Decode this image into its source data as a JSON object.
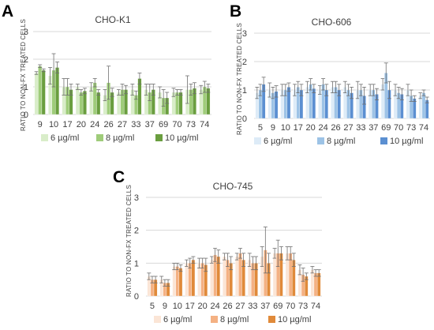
{
  "chart_data": [
    {
      "type": "bar",
      "panel": "A",
      "title": "CHO-K1",
      "ylabel": "RATIO TO NON-FX TREATED CELLS",
      "ylim": [
        0,
        3
      ],
      "yticks": [
        "0",
        "1",
        "2",
        "3"
      ],
      "grid": true,
      "legend": "bottom",
      "categories": [
        "9",
        "10",
        "17",
        "20",
        "24",
        "26",
        "27",
        "33",
        "37",
        "69",
        "70",
        "73",
        "74"
      ],
      "series": [
        {
          "name": "6 µg/ml",
          "color": "#d9edc9",
          "values": [
            1.5,
            1.4,
            1.0,
            1.0,
            1.0,
            0.7,
            0.8,
            0.9,
            0.9,
            0.8,
            0.8,
            0.9,
            0.9
          ],
          "errors": [
            0.05,
            0.3,
            0.3,
            0.1,
            0.15,
            0.2,
            0.1,
            0.2,
            0.2,
            0.2,
            0.15,
            0.5,
            0.15
          ]
        },
        {
          "name": "8 µg/ml",
          "color": "#9fcc7a",
          "values": [
            1.75,
            1.6,
            1.0,
            0.8,
            1.15,
            1.15,
            0.9,
            0.7,
            0.8,
            0.6,
            0.8,
            0.9,
            1.0
          ],
          "errors": [
            0.05,
            0.6,
            0.3,
            0.1,
            0.15,
            0.6,
            0.2,
            0.15,
            0.3,
            0.3,
            0.1,
            0.2,
            0.2
          ]
        },
        {
          "name": "10 µg/ml",
          "color": "#6a9e3f",
          "values": [
            1.6,
            1.7,
            0.9,
            0.85,
            0.8,
            0.8,
            0.9,
            1.3,
            0.9,
            0.6,
            0.8,
            0.95,
            0.95
          ],
          "errors": [
            0.05,
            0.2,
            0.2,
            0.1,
            0.1,
            0.15,
            0.15,
            0.2,
            0.2,
            0.2,
            0.1,
            0.2,
            0.15
          ]
        }
      ]
    },
    {
      "type": "bar",
      "panel": "B",
      "title": "CHO-606",
      "ylabel": "RATIO TO NON-FX TREATED CELLS",
      "ylim": [
        0,
        3
      ],
      "yticks": [
        "0",
        "1",
        "2",
        "3"
      ],
      "grid": true,
      "legend": "bottom",
      "categories": [
        "5",
        "9",
        "10",
        "17",
        "20",
        "24",
        "26",
        "27",
        "33",
        "37",
        "69",
        "70",
        "73",
        "74"
      ],
      "series": [
        {
          "name": "6 µg/ml",
          "color": "#ddebf7",
          "values": [
            0.9,
            1.0,
            1.0,
            1.0,
            1.1,
            1.0,
            1.1,
            1.1,
            1.0,
            1.0,
            1.2,
            1.0,
            1.0,
            0.8
          ],
          "errors": [
            0.2,
            0.25,
            0.2,
            0.2,
            0.2,
            0.15,
            0.2,
            0.2,
            0.3,
            0.2,
            0.2,
            0.2,
            0.2,
            0.1
          ]
        },
        {
          "name": "8 µg/ml",
          "color": "#9dc3e6",
          "values": [
            1.0,
            0.9,
            1.0,
            1.1,
            1.2,
            1.2,
            1.1,
            1.0,
            1.0,
            1.0,
            1.6,
            0.9,
            0.8,
            0.9
          ],
          "errors": [
            0.2,
            0.2,
            0.2,
            0.2,
            0.2,
            0.2,
            0.2,
            0.2,
            0.2,
            0.2,
            0.35,
            0.2,
            0.2,
            0.1
          ]
        },
        {
          "name": "10 µg/ml",
          "color": "#5b8fd1",
          "values": [
            1.2,
            0.95,
            1.1,
            1.0,
            1.05,
            1.0,
            1.0,
            0.9,
            0.8,
            0.85,
            1.0,
            0.85,
            0.7,
            0.65
          ],
          "errors": [
            0.25,
            0.2,
            0.15,
            0.2,
            0.15,
            0.2,
            0.2,
            0.2,
            0.3,
            0.2,
            0.3,
            0.2,
            0.1,
            0.1
          ]
        }
      ]
    },
    {
      "type": "bar",
      "panel": "C",
      "title": "CHO-745",
      "ylabel": "RATIO TO NON-FX TREATED CELLS",
      "ylim": [
        0,
        3
      ],
      "yticks": [
        "0",
        "1",
        "2",
        "3"
      ],
      "grid": true,
      "legend": "bottom",
      "categories": [
        "5",
        "9",
        "10",
        "17",
        "20",
        "24",
        "26",
        "27",
        "33",
        "37",
        "69",
        "70",
        "73",
        "74"
      ],
      "series": [
        {
          "name": "6 µg/ml",
          "color": "#fbe5d6",
          "values": [
            0.6,
            0.5,
            0.9,
            1.0,
            1.0,
            1.1,
            1.2,
            1.2,
            1.1,
            1.2,
            1.3,
            1.3,
            0.8,
            0.8
          ],
          "errors": [
            0.1,
            0.1,
            0.1,
            0.1,
            0.15,
            0.1,
            0.1,
            0.1,
            0.2,
            0.3,
            0.15,
            0.2,
            0.15,
            0.1
          ]
        },
        {
          "name": "8 µg/ml",
          "color": "#f4b183",
          "values": [
            0.5,
            0.4,
            0.9,
            1.0,
            1.0,
            1.25,
            1.1,
            1.3,
            1.0,
            1.4,
            1.3,
            1.3,
            0.65,
            0.7
          ],
          "errors": [
            0.1,
            0.1,
            0.1,
            0.15,
            0.15,
            0.2,
            0.2,
            0.15,
            0.2,
            0.7,
            0.4,
            0.2,
            0.2,
            0.1
          ]
        },
        {
          "name": "10 µg/ml",
          "color": "#e08a3a",
          "values": [
            0.5,
            0.4,
            0.85,
            1.1,
            0.95,
            1.2,
            1.0,
            1.1,
            1.0,
            1.0,
            1.3,
            1.1,
            0.6,
            0.7
          ],
          "errors": [
            0.1,
            0.1,
            0.1,
            0.1,
            0.2,
            0.2,
            0.2,
            0.2,
            0.2,
            0.3,
            0.2,
            0.2,
            0.1,
            0.1
          ]
        }
      ]
    }
  ]
}
